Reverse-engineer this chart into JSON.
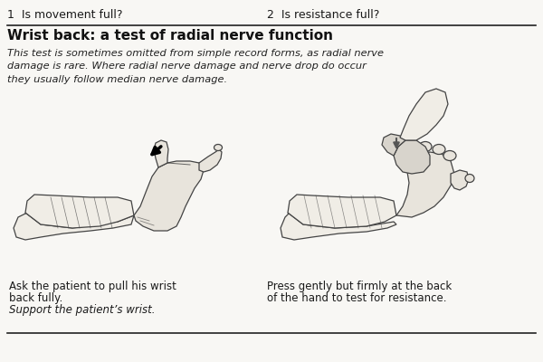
{
  "background_color": "#f8f7f4",
  "top_label_1": "1  Is movement full?",
  "top_label_2": "2  Is resistance full?",
  "title": "Wrist back: a test of radial nerve function",
  "italic_text": "This test is sometimes omitted from simple record forms, as radial nerve\ndamage is rare. Where radial nerve damage and nerve drop do occur\nthey usually follow median nerve damage.",
  "caption_left_1": "Ask the patient to pull his wrist",
  "caption_left_2": "back fully.",
  "caption_left_3": "Support the patient’s wrist.",
  "caption_right_1": "Press gently but firmly at the back",
  "caption_right_2": "of the hand to test for resistance.",
  "figsize": [
    6.0,
    4.0
  ],
  "dpi": 100,
  "text_color": "#1a1a1a",
  "line_color": "#222222",
  "hand_edge": "#444444",
  "hand_face": "#e8e4dc",
  "skin_light": "#f0ede6"
}
